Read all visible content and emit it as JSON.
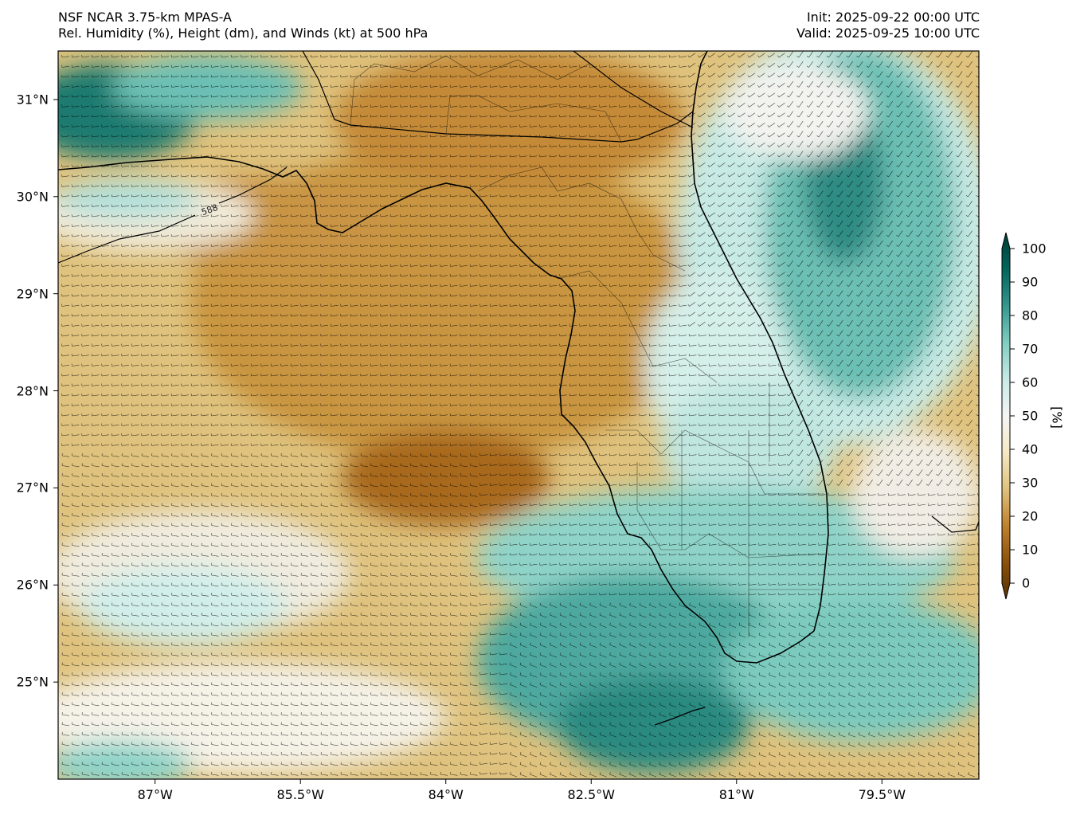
{
  "header": {
    "model": "NSF NCAR 3.75-km MPAS-A",
    "field": "Rel. Humidity (%), Height (dm), and Winds (kt) at 500 hPa",
    "init": "Init: 2025-09-22 00:00 UTC",
    "valid": "Valid: 2025-09-25 10:00 UTC"
  },
  "map": {
    "lat_range": [
      24.0,
      31.5
    ],
    "lon_range": [
      -88.0,
      -78.5
    ],
    "lat_ticks": [
      "31°N",
      "30°N",
      "29°N",
      "28°N",
      "27°N",
      "26°N",
      "25°N"
    ],
    "lat_tick_values": [
      31,
      30,
      29,
      28,
      27,
      26,
      25
    ],
    "lon_ticks": [
      "87°W",
      "85.5°W",
      "84°W",
      "82.5°W",
      "81°W",
      "79.5°W"
    ],
    "lon_tick_values": [
      -87,
      -85.5,
      -84,
      -82.5,
      -81,
      -79.5
    ],
    "contour_label": "588",
    "colors": {
      "dry": "#8c510a",
      "mid": "#f5f5f5",
      "moist": "#01665e",
      "coastline": "#000000",
      "wind_barbs": "#000000"
    }
  },
  "colorbar": {
    "ticks": [
      "100",
      "90",
      "80",
      "70",
      "60",
      "50",
      "40",
      "30",
      "20",
      "10",
      "0"
    ],
    "tick_values": [
      100,
      90,
      80,
      70,
      60,
      50,
      40,
      30,
      20,
      10,
      0
    ],
    "unit": "[%]",
    "colors": [
      "#543005",
      "#8c510a",
      "#bf812d",
      "#dfc27d",
      "#f6e8c3",
      "#f5f5f5",
      "#c7eae5",
      "#80cdc1",
      "#35978f",
      "#01665e",
      "#003c30"
    ]
  }
}
